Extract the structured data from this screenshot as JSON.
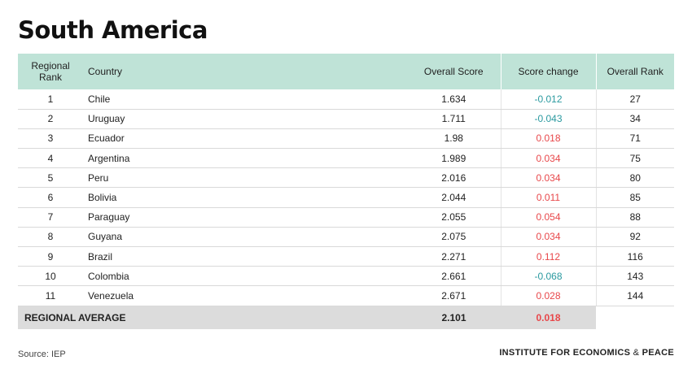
{
  "title": "South America",
  "headers": {
    "regional_rank": "Regional Rank",
    "country": "Country",
    "overall_score": "Overall Score",
    "score_change": "Score change",
    "overall_rank": "Overall Rank"
  },
  "rows": [
    {
      "rank": "1",
      "country": "Chile",
      "score": "1.634",
      "change": "-0.012",
      "overall_rank": "27"
    },
    {
      "rank": "2",
      "country": "Uruguay",
      "score": "1.711",
      "change": "-0.043",
      "overall_rank": "34"
    },
    {
      "rank": "3",
      "country": "Ecuador",
      "score": "1.98",
      "change": "0.018",
      "overall_rank": "71"
    },
    {
      "rank": "4",
      "country": "Argentina",
      "score": "1.989",
      "change": "0.034",
      "overall_rank": "75"
    },
    {
      "rank": "5",
      "country": "Peru",
      "score": "2.016",
      "change": "0.034",
      "overall_rank": "80"
    },
    {
      "rank": "6",
      "country": "Bolivia",
      "score": "2.044",
      "change": "0.011",
      "overall_rank": "85"
    },
    {
      "rank": "7",
      "country": "Paraguay",
      "score": "2.055",
      "change": "0.054",
      "overall_rank": "88"
    },
    {
      "rank": "8",
      "country": "Guyana",
      "score": "2.075",
      "change": "0.034",
      "overall_rank": "92"
    },
    {
      "rank": "9",
      "country": "Brazil",
      "score": "2.271",
      "change": "0.112",
      "overall_rank": "116"
    },
    {
      "rank": "10",
      "country": "Colombia",
      "score": "2.661",
      "change": "-0.068",
      "overall_rank": "143"
    },
    {
      "rank": "11",
      "country": "Venezuela",
      "score": "2.671",
      "change": "0.028",
      "overall_rank": "144"
    }
  ],
  "average": {
    "label": "REGIONAL AVERAGE",
    "score": "2.101",
    "change": "0.018"
  },
  "source": "Source: IEP",
  "org": {
    "part1": "INSTITUTE FOR ECONOMICS",
    "amp": "&",
    "part2": "PEACE"
  },
  "colors": {
    "header_bg": "#bfe3d7",
    "negative": "#2b9aa0",
    "positive": "#e8474a",
    "average_bg": "#dcdcdc"
  }
}
